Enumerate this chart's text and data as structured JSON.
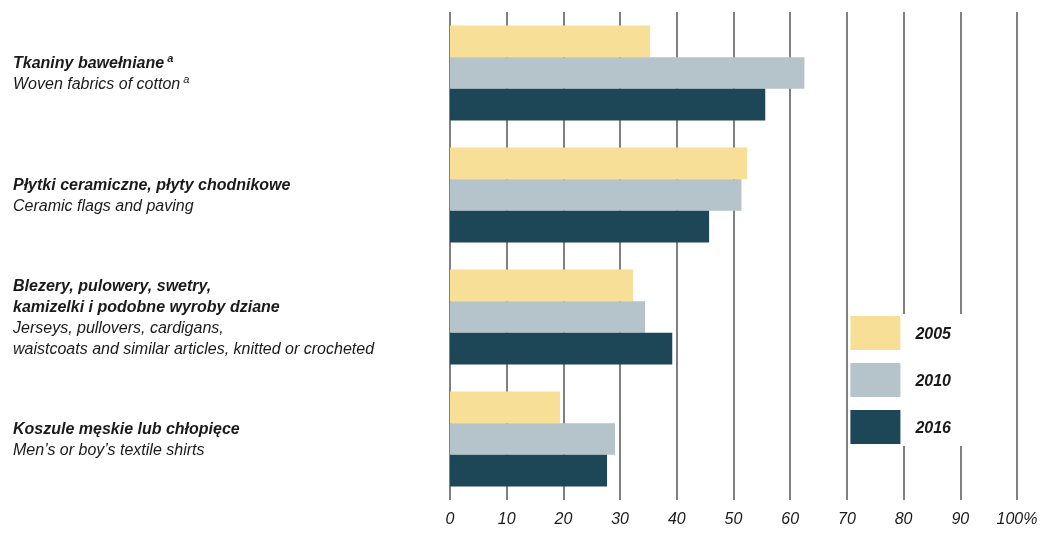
{
  "chart_data": {
    "type": "bar",
    "orientation": "horizontal",
    "categories": [
      "Tkaniny bawełniane$^{a}$\nWoven fabrics of cotton$^{a}$",
      "Płytki ceramiczne, płyty chodnikowe\nCeramic flags and paving",
      "Blezery, pulowery, swetry,\nkamizelki i podobne wyroby dziane\nJerseys, pullovers, cardigans,\nwaistcoats and similar articles, knitted or crocheted",
      "Koszule męskie lub chłopięce\nMen’s or boy’s textile shirts"
    ],
    "series": [
      {
        "name": "2005",
        "color": "#f8df98",
        "values": [
          35.3,
          52.4,
          32.3,
          19.4
        ]
      },
      {
        "name": "2010",
        "color": "#b5c3ca",
        "values": [
          62.5,
          51.4,
          34.4,
          29.1
        ]
      },
      {
        "name": "2016",
        "color": "#1d4656",
        "values": [
          55.6,
          45.7,
          39.2,
          27.7
        ]
      }
    ],
    "xlim": [
      0,
      100
    ],
    "xticks": [
      0,
      10,
      20,
      30,
      40,
      50,
      60,
      70,
      80,
      90,
      {
        "value": 100,
        "label": "100%"
      }
    ],
    "grid": "x",
    "legend": "right"
  }
}
